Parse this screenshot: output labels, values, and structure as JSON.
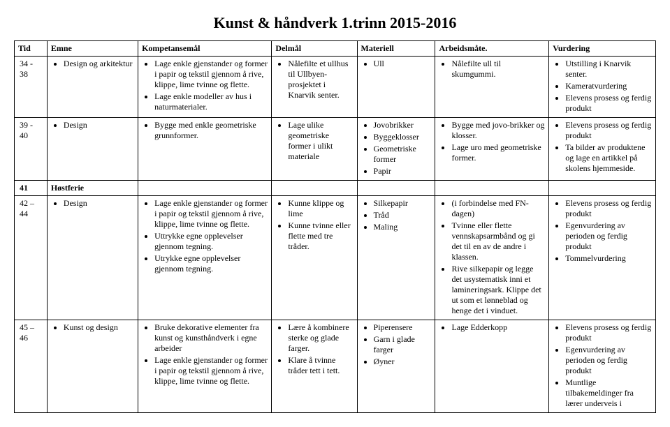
{
  "title": "Kunst & håndverk 1.trinn 2015-2016",
  "columns": [
    "Tid",
    "Emne",
    "Kompetansemål",
    "Delmål",
    "Materiell",
    "Arbeidsmåte.",
    "Vurdering"
  ],
  "rows": [
    {
      "tid": "34 - 38",
      "emne": [
        "Design og arkitektur"
      ],
      "komp": [
        "Lage enkle gjenstander og former i papir og tekstil gjennom å rive, klippe, lime tvinne og flette.",
        "Lage enkle modeller av hus i naturmaterialer."
      ],
      "del": [
        "Nålefilte et ullhus til Ullbyen-prosjektet i Knarvik senter."
      ],
      "mat": [
        "Ull"
      ],
      "arb": [
        "Nålefilte ull til skumgummi."
      ],
      "vur": [
        "Utstilling i Knarvik senter.",
        "Kameratvurdering",
        "Elevens prosess og ferdig produkt"
      ]
    },
    {
      "tid": "39 - 40",
      "emne": [
        "Design"
      ],
      "komp": [
        "Bygge med enkle geometriske grunnformer."
      ],
      "del": [
        "Lage ulike geometriske former i ulikt materiale"
      ],
      "mat": [
        "Jovobrikker",
        "Byggeklosser",
        "Geometriske former",
        "Papir"
      ],
      "arb": [
        "Bygge med jovo-brikker og klosser.",
        "Lage uro med geometriske former."
      ],
      "vur": [
        "Elevens prosess og ferdig produkt",
        "Ta bilder av produktene og lage en artikkel på skolens hjemmeside."
      ]
    },
    {
      "tid": "41",
      "hostferie": "Høstferie"
    },
    {
      "tid": "42 – 44",
      "emne": [
        "Design"
      ],
      "komp": [
        "Lage enkle gjenstander og former i papir og tekstil gjennom å rive, klippe, lime tvinne og flette.",
        "Uttrykke egne opplevelser gjennom tegning.",
        "Utrykke egne opplevelser gjennom tegning."
      ],
      "del": [
        "Kunne klippe og lime",
        "Kunne tvinne eller flette med tre tråder."
      ],
      "mat": [
        "Silkepapir",
        "Tråd",
        "Maling"
      ],
      "arb": [
        " (i forbindelse med FN-dagen)",
        "Tvinne eller flette vennskapsarmbånd og gi det til en av de andre i klassen.",
        "Rive silkepapir og legge det usystematisk inni et lamineringsark. Klippe det ut som et lønneblad og henge det i vinduet."
      ],
      "vur": [
        "Elevens prosess og ferdig produkt",
        "Egenvurdering av perioden og ferdig produkt",
        "Tommelvurdering"
      ]
    },
    {
      "tid": "45 – 46",
      "emne": [
        "Kunst og design"
      ],
      "komp": [
        "Bruke dekorative elementer fra kunst og kunsthåndverk i egne arbeider",
        "Lage enkle gjenstander og former i papir og tekstil gjennom å rive, klippe, lime tvinne og flette."
      ],
      "del": [
        "Lære å kombinere sterke og glade farger.",
        "Klare å tvinne tråder tett i tett."
      ],
      "mat": [
        "Piperensere",
        "Garn i glade farger",
        "Øyner"
      ],
      "arb": [
        "Lage Edderkopp"
      ],
      "vur": [
        "Elevens prosess og ferdig produkt",
        "Egenvurdering av perioden og ferdig produkt",
        "Muntlige tilbakemeldinger fra lærer underveis i"
      ]
    }
  ]
}
